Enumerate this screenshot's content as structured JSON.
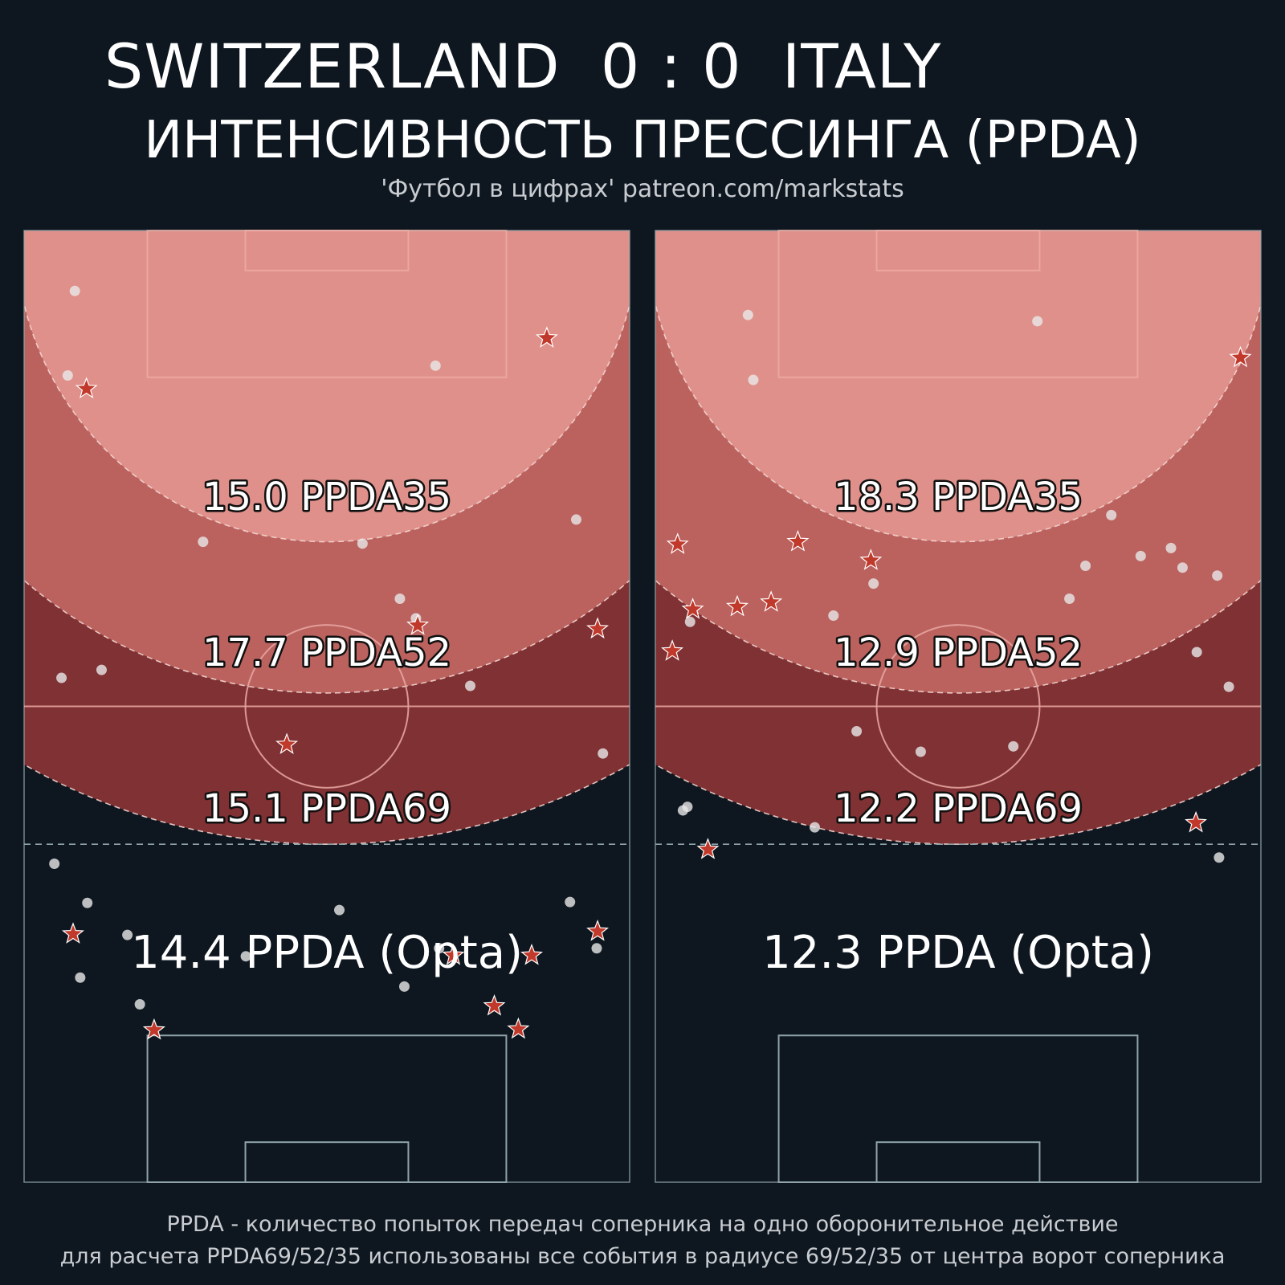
{
  "header": {
    "home_team": "SWITZERLAND",
    "score": "0 : 0",
    "away_team": "ITALY",
    "subtitle": "ИНТЕНСИВНОСТЬ ПРЕССИНГА (PPDA)",
    "credit": "'Футбол в цифрах' patreon.com/markstats"
  },
  "footer": {
    "line1": "PPDA - количество попыток передач соперника на одно оборонительное действие",
    "line2": "для расчета PPDA69/52/35 использованы все события в радиусе 69/52/35 от центра ворот соперника"
  },
  "colors": {
    "background": "#0e1720",
    "zone_35": "#e0908a",
    "zone_52": "#bb625f",
    "zone_69": "#7f3133",
    "star": "#c0392b",
    "dot": "#e8e8e8"
  },
  "chart_data": [
    {
      "type": "scatter",
      "team": "SWITZERLAND",
      "ppda_labels": {
        "ppda35": "15.0 PPDA35",
        "ppda52": "17.7 PPDA52",
        "ppda69": "15.1 PPDA69",
        "opta": "14.4 PPDA (Opta)"
      },
      "zone_radii": [
        35,
        52,
        69
      ],
      "xlim": [
        0,
        68
      ],
      "ylim": [
        0,
        107
      ],
      "dots": [
        [
          5.7,
          100.2
        ],
        [
          4.9,
          90.7
        ],
        [
          46.2,
          91.8
        ],
        [
          62.0,
          74.5
        ],
        [
          20.1,
          72.0
        ],
        [
          38.0,
          71.8
        ],
        [
          42.2,
          65.6
        ],
        [
          44.0,
          63.4
        ],
        [
          4.2,
          56.7
        ],
        [
          8.7,
          57.6
        ],
        [
          50.1,
          55.8
        ],
        [
          65.0,
          48.2
        ],
        [
          3.4,
          35.8
        ],
        [
          7.1,
          31.4
        ],
        [
          35.4,
          30.6
        ],
        [
          61.3,
          31.5
        ],
        [
          11.6,
          27.8
        ],
        [
          46.6,
          26.3
        ],
        [
          64.3,
          26.3
        ],
        [
          6.3,
          23.0
        ],
        [
          24.9,
          25.4
        ],
        [
          42.7,
          22.0
        ],
        [
          13.0,
          20.0
        ]
      ],
      "stars": [
        [
          58.7,
          94.9
        ],
        [
          7.0,
          89.2
        ],
        [
          44.2,
          62.6
        ],
        [
          64.4,
          62.2
        ],
        [
          29.5,
          49.2
        ],
        [
          5.5,
          27.9
        ],
        [
          48.2,
          25.5
        ],
        [
          57.0,
          25.5
        ],
        [
          64.4,
          28.2
        ],
        [
          52.8,
          19.8
        ],
        [
          55.5,
          17.2
        ],
        [
          14.6,
          17.1
        ]
      ]
    },
    {
      "type": "scatter",
      "team": "ITALY",
      "ppda_labels": {
        "ppda35": "18.3 PPDA35",
        "ppda52": "12.9 PPDA52",
        "ppda69": "12.2 PPDA69",
        "opta": "12.3 PPDA (Opta)"
      },
      "zone_radii": [
        35,
        52,
        69
      ],
      "xlim": [
        0,
        68
      ],
      "ylim": [
        0,
        107
      ],
      "dots": [
        [
          10.4,
          97.5
        ],
        [
          42.9,
          96.8
        ],
        [
          11.0,
          90.2
        ],
        [
          51.2,
          75.0
        ],
        [
          57.9,
          71.3
        ],
        [
          54.5,
          70.4
        ],
        [
          48.3,
          69.3
        ],
        [
          59.2,
          69.1
        ],
        [
          63.1,
          68.2
        ],
        [
          24.5,
          67.3
        ],
        [
          46.5,
          65.6
        ],
        [
          20.0,
          63.7
        ],
        [
          3.9,
          63.0
        ],
        [
          60.8,
          59.6
        ],
        [
          64.4,
          55.7
        ],
        [
          22.6,
          50.7
        ],
        [
          40.2,
          49.0
        ],
        [
          29.8,
          48.4
        ],
        [
          3.1,
          41.8
        ],
        [
          3.6,
          42.2
        ],
        [
          17.9,
          39.9
        ],
        [
          63.3,
          36.5
        ]
      ],
      "stars": [
        [
          65.7,
          92.7
        ],
        [
          2.5,
          71.7
        ],
        [
          16.0,
          72.0
        ],
        [
          13.0,
          65.2
        ],
        [
          4.2,
          64.4
        ],
        [
          9.2,
          64.7
        ],
        [
          1.9,
          59.7
        ],
        [
          24.2,
          69.9
        ],
        [
          5.9,
          37.4
        ],
        [
          60.7,
          40.4
        ]
      ]
    }
  ]
}
